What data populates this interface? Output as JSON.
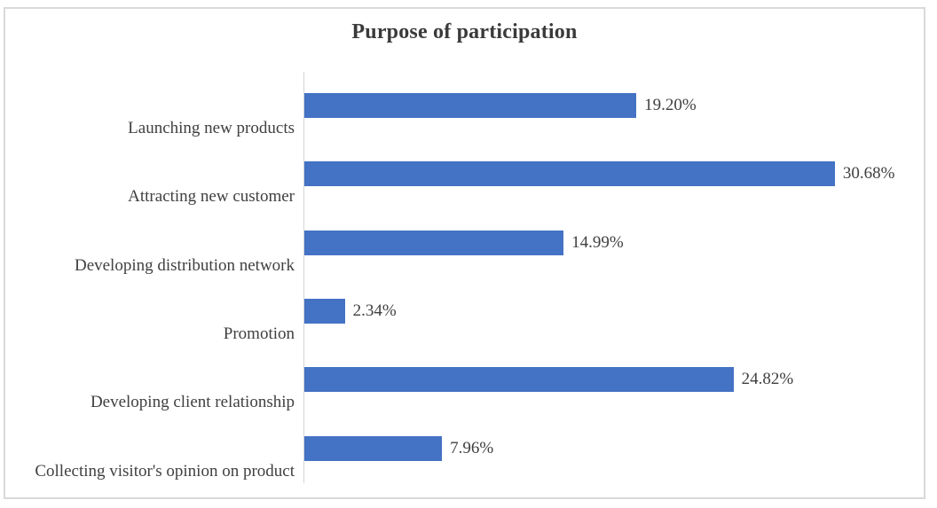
{
  "chart": {
    "title": "Purpose of participation",
    "bar_color": "#4472C4",
    "axis_line_color": "#d4d4d4",
    "frame_border_color": "#d9d9d9",
    "text_color": "#404040",
    "title_color": "#3a3a3a"
  },
  "chart_data": {
    "type": "bar",
    "orientation": "horizontal",
    "title": "Purpose of participation",
    "categories": [
      "Launching new products",
      "Attracting new customer",
      "Developing distribution network",
      "Promotion",
      "Developing client relationship",
      "Collecting visitor's opinion on product"
    ],
    "values": [
      19.2,
      30.68,
      14.99,
      2.34,
      24.82,
      7.96
    ],
    "data_labels": [
      "19.20%",
      "30.68%",
      "14.99%",
      "2.34%",
      "24.82%",
      "7.96%"
    ],
    "xlabel": "",
    "ylabel": "",
    "xlim": [
      0,
      35
    ],
    "grid": false,
    "legend": false,
    "data_label_position": "outside-end"
  }
}
